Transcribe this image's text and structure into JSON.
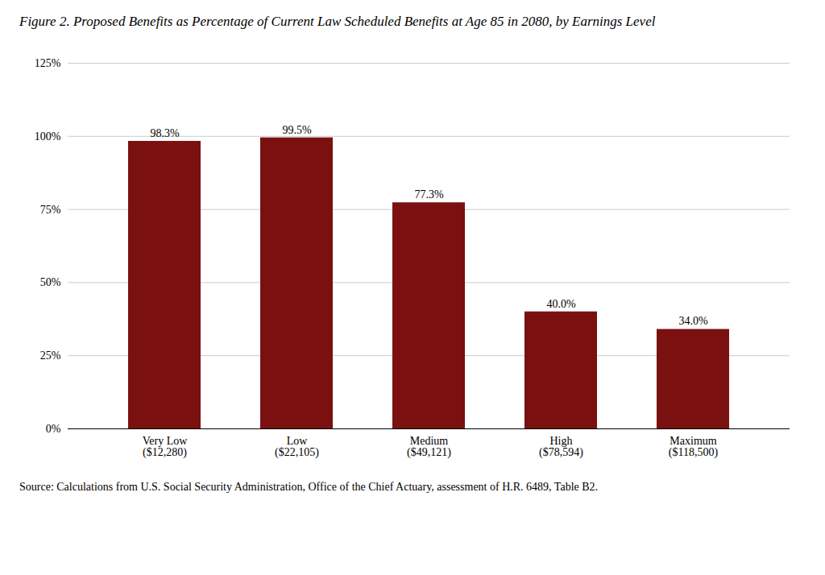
{
  "chart_data": {
    "type": "bar",
    "title": "Figure 2. Proposed Benefits as Percentage of Current Law Scheduled Benefits at Age 85 in 2080, by Earnings Level",
    "caption": "Source: Calculations from U.S. Social Security Administration, Office of the Chief Actuary, assessment of H.R. 6489, Table B2.",
    "categories": [
      "Very Low\n($12,280)",
      "Low\n($22,105)",
      "Medium\n($49,121)",
      "High\n($78,594)",
      "Maximum\n($118,500)"
    ],
    "values": [
      98.3,
      99.5,
      77.3,
      40.0,
      34.0
    ],
    "value_labels": [
      "98.3%",
      "99.5%",
      "77.3%",
      "40.0%",
      "34.0%"
    ],
    "data_labels": true,
    "color": "#7B1010",
    "ylim": [
      0,
      125
    ],
    "yticks": [
      {
        "value": 0,
        "label": "0%"
      },
      {
        "value": 25,
        "label": "25%"
      },
      {
        "value": 50,
        "label": "50%"
      },
      {
        "value": 75,
        "label": "75%"
      },
      {
        "value": 100,
        "label": "100%"
      },
      {
        "value": 125,
        "label": "125%"
      }
    ],
    "grid": true
  }
}
